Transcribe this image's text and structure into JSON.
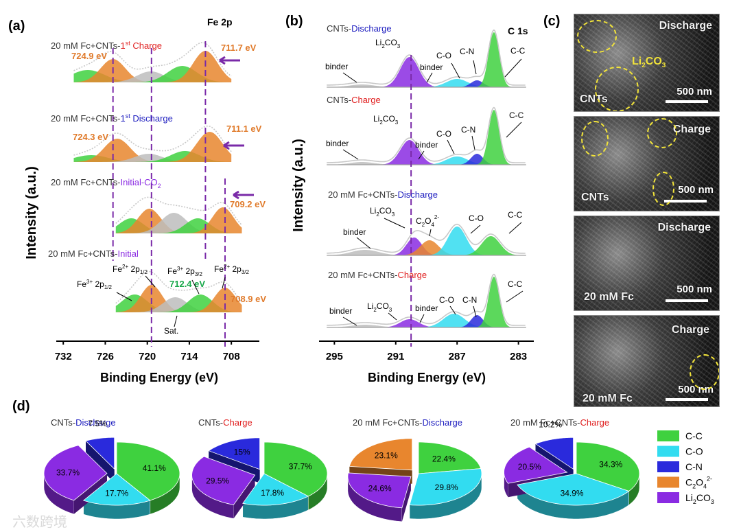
{
  "panel_labels": {
    "a": "(a)",
    "b": "(b)",
    "c": "(c)",
    "d": "(d)"
  },
  "colors": {
    "c_c": "#3fd13f",
    "c_o": "#32dcf0",
    "c_n": "#2a2adc",
    "c2o4": "#e8862e",
    "li2co3": "#8a2be2",
    "blue_text": "#2020c0",
    "red_text": "#e02020",
    "purple_text": "#8a2be2",
    "orange_text": "#e07a2a",
    "green_text": "#18a84a",
    "dash": "#7a2aa8"
  },
  "chart_data": [
    {
      "type": "line",
      "panel": "a",
      "title": "Fe 2p",
      "xlabel": "Binding Energy (eV)",
      "ylabel": "Intensity (a.u.)",
      "xlim": [
        733,
        704
      ],
      "xticks": [
        "732",
        "726",
        "720",
        "714",
        "708"
      ],
      "spectra": [
        {
          "name_prefix": "20 mM Fc+CNTs-",
          "name_suffix": "1",
          "name_sup": "st",
          "name_tail": " Charge",
          "name_color": "red"
        },
        {
          "name_prefix": "20 mM Fc+CNTs-",
          "name_suffix": "1",
          "name_sup": "st",
          "name_tail": " Discharge",
          "name_color": "blue"
        },
        {
          "name_prefix": "20 mM Fc+CNTs-",
          "name_suffix": "Initial-CO",
          "name_sub": "2",
          "name_tail": "",
          "name_color": "purple"
        },
        {
          "name_prefix": "20 mM Fc+CNTs-",
          "name_suffix": "Initial",
          "name_tail": "",
          "name_color": "purple"
        }
      ],
      "annotations": {
        "charge_left": "724.9 eV",
        "charge_right": "711.7 eV",
        "discharge_left": "724.3 eV",
        "discharge_right": "711.1 eV",
        "initco2_right": "709.2 eV",
        "initial_green": "712.4 eV",
        "initial_right": "708.9 eV",
        "fe3_2p12": "Fe",
        "fe3_2p12_sup": "3+",
        "fe3_2p12_tail": " 2p",
        "fe3_2p12_sub": "1/2",
        "fe2_2p12": "Fe",
        "fe2_2p12_sup": "2+",
        "fe2_2p12_tail": " 2p",
        "fe2_2p12_sub": "1/2",
        "fe3_2p32": "Fe",
        "fe3_2p32_sup": "3+",
        "fe3_2p32_tail": " 2p",
        "fe3_2p32_sub": "3/2",
        "fe2_2p32": "Fe",
        "fe2_2p32_sup": "2+",
        "fe2_2p32_tail": " 2p",
        "fe2_2p32_sub": "3/2",
        "sat": "Sat."
      }
    },
    {
      "type": "line",
      "panel": "b",
      "title": "C 1s",
      "xlabel": "Binding Energy (eV)",
      "ylabel": "Intensity (a.u.)",
      "xlim": [
        296,
        282
      ],
      "xticks": [
        "295",
        "291",
        "287",
        "283"
      ],
      "spectra": [
        {
          "name_prefix": "CNTs-",
          "name_suffix": "Discharge",
          "name_color": "blue"
        },
        {
          "name_prefix": "CNTs-",
          "name_suffix": "Charge",
          "name_color": "red"
        },
        {
          "name_prefix": "20 mM Fc+CNTs-",
          "name_suffix": "Discharge",
          "name_color": "blue"
        },
        {
          "name_prefix": "20 mM Fc+CNTs-",
          "name_suffix": "Charge",
          "name_color": "red"
        }
      ],
      "peak_labels": {
        "binder": "binder",
        "li": "Li",
        "li_sub1": "2",
        "co": "CO",
        "li_sub2": "3",
        "c_o": "C-O",
        "c_n": "C-N",
        "c_c": "C-C",
        "c2": "C",
        "c2_sub1": "2",
        "o4": "O",
        "o4_sub": "4",
        "o4_sup": "2-"
      }
    },
    {
      "type": "pie",
      "panel": "d",
      "charts": [
        {
          "title_prefix": "CNTs-",
          "title_suffix": "Discharge",
          "title_color": "blue",
          "slices": [
            {
              "label": "C-C",
              "value": 41.1
            },
            {
              "label": "C-O",
              "value": 17.7
            },
            {
              "label": "Li2CO3",
              "value": 33.7
            },
            {
              "label": "C-N",
              "value": 7.5
            }
          ],
          "value_labels": [
            "41.1%",
            "17.7%",
            "33.7%",
            "7.5%"
          ]
        },
        {
          "title_prefix": "CNTs-",
          "title_suffix": "Charge",
          "title_color": "red",
          "slices": [
            {
              "label": "C-C",
              "value": 37.7
            },
            {
              "label": "C-O",
              "value": 17.8
            },
            {
              "label": "Li2CO3",
              "value": 29.5
            },
            {
              "label": "C-N",
              "value": 15.0
            }
          ],
          "value_labels": [
            "37.7%",
            "17.8%",
            "29.5%",
            "15%"
          ]
        },
        {
          "title_prefix": "20 mM Fc+CNTs-",
          "title_suffix": "Discharge",
          "title_color": "blue",
          "slices": [
            {
              "label": "C-C",
              "value": 22.4
            },
            {
              "label": "C-O",
              "value": 29.8
            },
            {
              "label": "Li2CO3",
              "value": 24.6
            },
            {
              "label": "C2O4",
              "value": 23.1
            }
          ],
          "value_labels": [
            "22.4%",
            "29.8%",
            "24.6%",
            "23.1%"
          ]
        },
        {
          "title_prefix": "20 mM Fc+CNTs-",
          "title_suffix": "Charge",
          "title_color": "red",
          "slices": [
            {
              "label": "C-C",
              "value": 34.3
            },
            {
              "label": "C-O",
              "value": 34.9
            },
            {
              "label": "Li2CO3",
              "value": 20.5
            },
            {
              "label": "C-N",
              "value": 10.2
            }
          ],
          "value_labels": [
            "34.3%",
            "34.9%",
            "20.5%",
            "10.2%"
          ]
        }
      ],
      "legend": [
        {
          "label": "C-C"
        },
        {
          "label": "C-O"
        },
        {
          "label": "C-N"
        },
        {
          "label": "C",
          "sub1": "2",
          "mid": "O",
          "sub2": "4",
          "sup": "2-"
        },
        {
          "label": "Li",
          "sub1": "2",
          "mid": "CO",
          "sub2": "3"
        }
      ]
    }
  ],
  "sem": {
    "images": [
      {
        "top_label": "Discharge",
        "bottom_label": "CNTs",
        "scale": "500 nm",
        "overlay": "Li",
        "overlay_sub1": "2",
        "overlay_mid": "CO",
        "overlay_sub2": "3"
      },
      {
        "top_label": "Charge",
        "bottom_label": "CNTs",
        "scale": "500 nm"
      },
      {
        "top_label": "Discharge",
        "bottom_label": "20 mM Fc",
        "scale": "500 nm"
      },
      {
        "top_label": "Charge",
        "bottom_label": "20 mM Fc",
        "scale": "500 nm"
      }
    ]
  },
  "watermark": "六数跨境"
}
